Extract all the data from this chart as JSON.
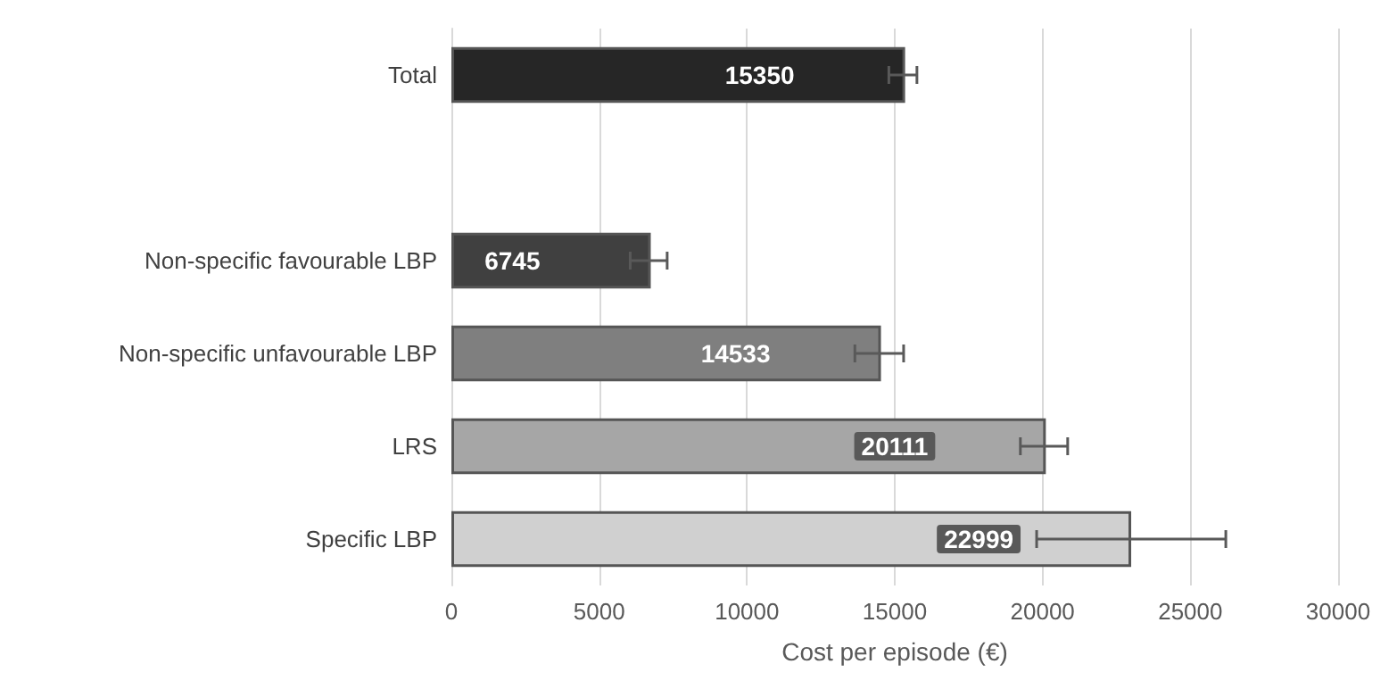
{
  "chart_data": {
    "type": "bar",
    "orientation": "horizontal",
    "xlabel": "Cost per episode (€)",
    "categories": [
      "Total",
      null,
      "Non-specific favourable LBP",
      "Non-specific unfavourable LBP",
      "LRS",
      "Specific LBP"
    ],
    "values": [
      15350,
      null,
      6745,
      14533,
      20111,
      22999
    ],
    "colors": [
      "#262626",
      null,
      "#404040",
      "#7f7f7f",
      "#a6a6a6",
      "#d0d0d0"
    ],
    "errors": [
      [
        14800,
        15750
      ],
      null,
      [
        6050,
        7300
      ],
      [
        13650,
        15300
      ],
      [
        19250,
        20850
      ],
      [
        19800,
        26200
      ]
    ],
    "data_labels": true,
    "xlim": [
      0,
      30000
    ],
    "xticks": [
      0,
      5000,
      10000,
      15000,
      20000,
      25000,
      30000
    ],
    "grid": "x"
  }
}
